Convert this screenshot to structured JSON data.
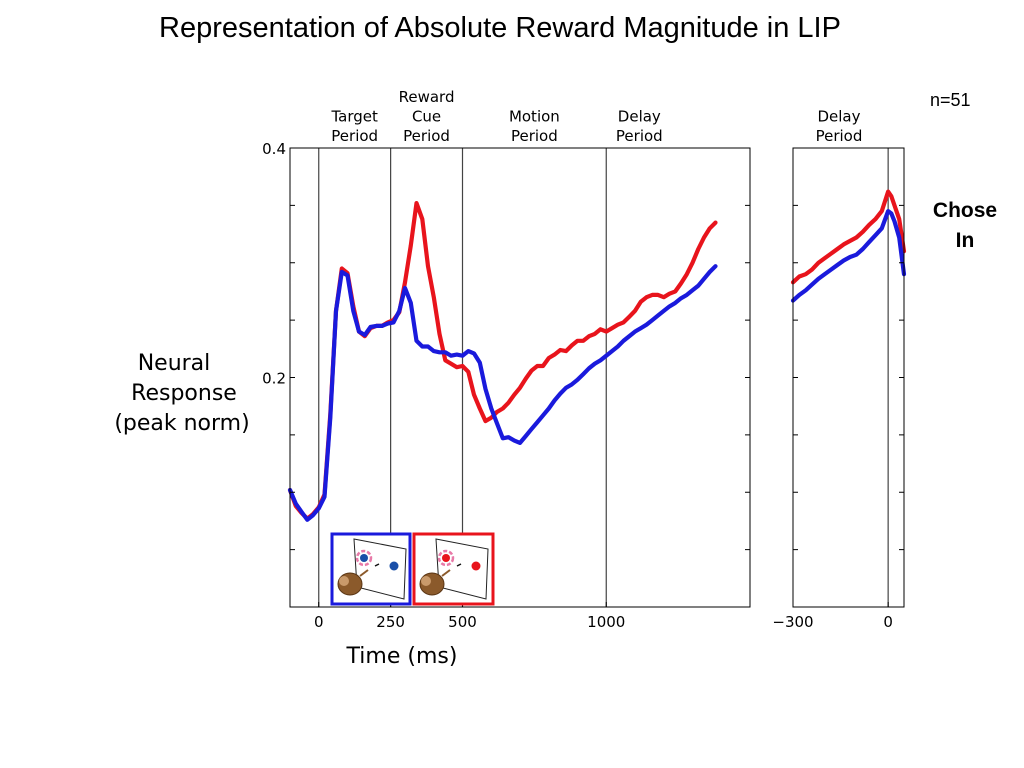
{
  "slide": {
    "title": "Representation of Absolute Reward Magnitude in LIP",
    "n_label": "n=51",
    "condition_label": [
      "Chose",
      "In"
    ]
  },
  "colors": {
    "high_reward": "#e8141c",
    "low_reward": "#1a1adc",
    "axis": "#000000",
    "divider": "#444444"
  },
  "chart_data": [
    {
      "type": "line",
      "title": "",
      "xlabel": "Time (ms)",
      "ylabel": [
        "Neural",
        "Response",
        "(peak norm)"
      ],
      "xlim": [
        -100,
        1500
      ],
      "ylim": [
        0.0,
        0.4
      ],
      "x_ticks": [
        0,
        250,
        500,
        1000
      ],
      "x_tick_labels": [
        "0",
        "250",
        "500",
        "1000"
      ],
      "y_ticks": [
        0.05,
        0.1,
        0.15,
        0.2,
        0.25,
        0.3,
        0.35,
        0.4
      ],
      "y_tick_labels": {
        "0.2": "0.2",
        "0.4": "0.4"
      },
      "epoch_dividers": [
        0,
        250,
        500,
        1000
      ],
      "epochs": [
        {
          "label": [
            "Target",
            "Period"
          ],
          "x_center": 125
        },
        {
          "label": [
            "Reward",
            "Cue",
            "Period"
          ],
          "x_center": 375
        },
        {
          "label": [
            "Motion",
            "Period"
          ],
          "x_center": 750
        },
        {
          "label": [
            "Delay",
            "Period"
          ],
          "x_center": 1115
        }
      ],
      "series": [
        {
          "color": "#e8141c",
          "x": [
            -100,
            -80,
            -60,
            -40,
            -20,
            0,
            20,
            40,
            60,
            80,
            100,
            120,
            140,
            160,
            180,
            200,
            220,
            240,
            260,
            280,
            300,
            320,
            340,
            360,
            380,
            400,
            420,
            440,
            460,
            480,
            500,
            520,
            540,
            560,
            580,
            600,
            620,
            640,
            660,
            680,
            700,
            720,
            740,
            760,
            780,
            800,
            820,
            840,
            860,
            880,
            900,
            920,
            940,
            960,
            980,
            1000,
            1020,
            1040,
            1060,
            1080,
            1100,
            1120,
            1140,
            1160,
            1180,
            1200,
            1220,
            1240,
            1260,
            1280,
            1300,
            1320,
            1340,
            1360,
            1380
          ],
          "y": [
            0.102,
            0.088,
            0.082,
            0.077,
            0.081,
            0.087,
            0.098,
            0.168,
            0.258,
            0.295,
            0.291,
            0.262,
            0.24,
            0.236,
            0.243,
            0.245,
            0.245,
            0.248,
            0.25,
            0.257,
            0.283,
            0.315,
            0.352,
            0.338,
            0.297,
            0.27,
            0.238,
            0.215,
            0.212,
            0.209,
            0.21,
            0.205,
            0.185,
            0.173,
            0.162,
            0.165,
            0.17,
            0.173,
            0.178,
            0.185,
            0.191,
            0.199,
            0.206,
            0.21,
            0.21,
            0.217,
            0.22,
            0.224,
            0.223,
            0.228,
            0.232,
            0.232,
            0.236,
            0.238,
            0.242,
            0.24,
            0.243,
            0.246,
            0.248,
            0.253,
            0.258,
            0.266,
            0.27,
            0.272,
            0.272,
            0.27,
            0.273,
            0.275,
            0.282,
            0.29,
            0.3,
            0.312,
            0.322,
            0.33,
            0.335
          ]
        },
        {
          "color": "#1a1adc",
          "x": [
            -100,
            -80,
            -60,
            -40,
            -20,
            0,
            20,
            40,
            60,
            80,
            100,
            120,
            140,
            160,
            180,
            200,
            220,
            240,
            260,
            280,
            300,
            320,
            340,
            360,
            380,
            400,
            420,
            440,
            460,
            480,
            500,
            520,
            540,
            560,
            580,
            600,
            620,
            640,
            660,
            680,
            700,
            720,
            740,
            760,
            780,
            800,
            820,
            840,
            860,
            880,
            900,
            920,
            940,
            960,
            980,
            1000,
            1020,
            1040,
            1060,
            1080,
            1100,
            1120,
            1140,
            1160,
            1180,
            1200,
            1220,
            1240,
            1260,
            1280,
            1300,
            1320,
            1340,
            1360,
            1380
          ],
          "y": [
            0.102,
            0.09,
            0.083,
            0.076,
            0.08,
            0.086,
            0.096,
            0.165,
            0.258,
            0.292,
            0.289,
            0.258,
            0.24,
            0.237,
            0.244,
            0.245,
            0.245,
            0.247,
            0.248,
            0.258,
            0.278,
            0.265,
            0.232,
            0.227,
            0.227,
            0.223,
            0.222,
            0.222,
            0.219,
            0.22,
            0.219,
            0.223,
            0.221,
            0.213,
            0.19,
            0.173,
            0.16,
            0.147,
            0.148,
            0.145,
            0.143,
            0.149,
            0.155,
            0.161,
            0.167,
            0.173,
            0.18,
            0.186,
            0.191,
            0.194,
            0.198,
            0.203,
            0.208,
            0.212,
            0.215,
            0.219,
            0.223,
            0.227,
            0.232,
            0.236,
            0.24,
            0.243,
            0.246,
            0.25,
            0.254,
            0.258,
            0.262,
            0.265,
            0.269,
            0.272,
            0.276,
            0.28,
            0.286,
            0.292,
            0.297
          ]
        }
      ],
      "insets": [
        {
          "frame_color": "#1a1adc",
          "target_color": "#1a4fa8",
          "ring_color": "#e87aa8"
        },
        {
          "frame_color": "#e8141c",
          "target_color": "#e8141c",
          "ring_color": "#e87aa8"
        }
      ]
    },
    {
      "type": "line",
      "title": "",
      "xlim": [
        -300,
        50
      ],
      "ylim": [
        0.0,
        0.4
      ],
      "x_ticks": [
        -300,
        0
      ],
      "x_tick_labels": [
        "−300",
        "0"
      ],
      "epoch_dividers": [
        0
      ],
      "epochs": [
        {
          "label": [
            "Delay",
            "Period"
          ],
          "x_center": -155
        }
      ],
      "series": [
        {
          "color": "#e8141c",
          "x": [
            -300,
            -280,
            -260,
            -240,
            -220,
            -200,
            -180,
            -160,
            -140,
            -120,
            -100,
            -80,
            -60,
            -40,
            -20,
            0,
            10,
            20,
            35,
            50
          ],
          "y": [
            0.283,
            0.288,
            0.29,
            0.294,
            0.3,
            0.304,
            0.308,
            0.312,
            0.316,
            0.319,
            0.322,
            0.327,
            0.333,
            0.338,
            0.345,
            0.362,
            0.358,
            0.35,
            0.338,
            0.31
          ]
        },
        {
          "color": "#1a1adc",
          "x": [
            -300,
            -280,
            -260,
            -240,
            -220,
            -200,
            -180,
            -160,
            -140,
            -120,
            -100,
            -80,
            -60,
            -40,
            -20,
            0,
            10,
            20,
            35,
            50
          ],
          "y": [
            0.267,
            0.272,
            0.276,
            0.281,
            0.286,
            0.29,
            0.294,
            0.298,
            0.302,
            0.305,
            0.307,
            0.312,
            0.318,
            0.324,
            0.33,
            0.345,
            0.343,
            0.336,
            0.322,
            0.29
          ]
        }
      ]
    }
  ]
}
